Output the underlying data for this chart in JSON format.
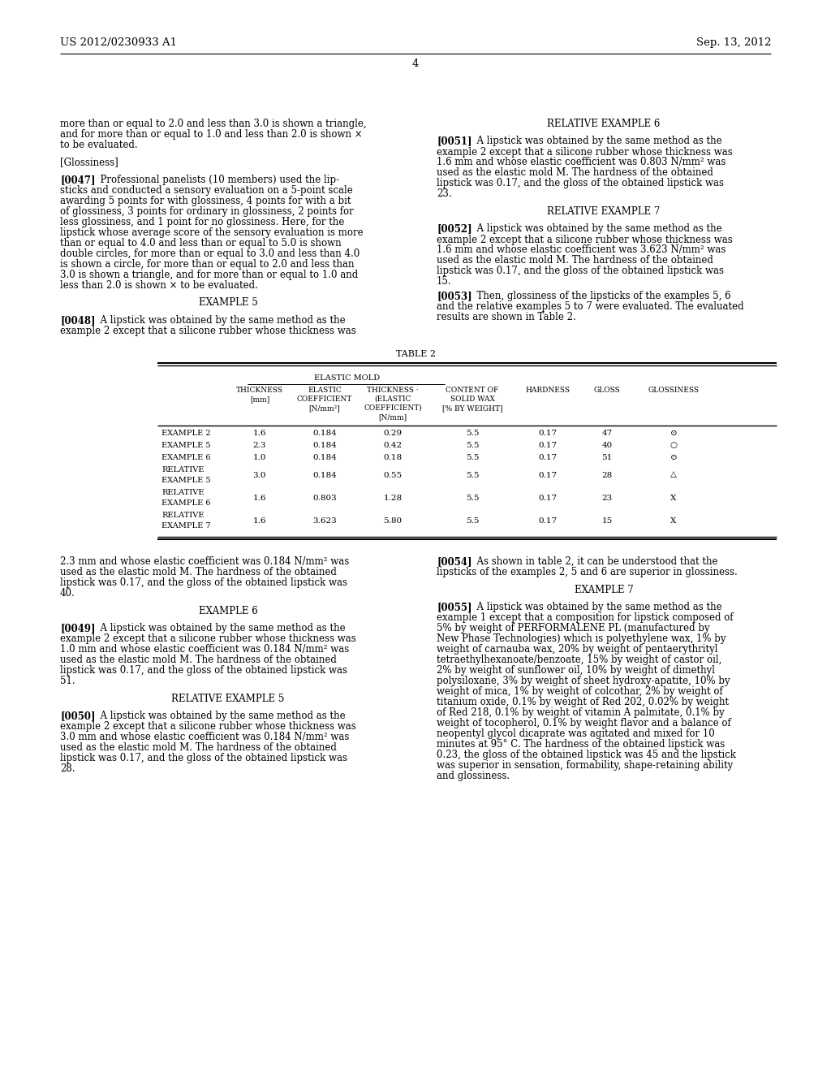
{
  "background_color": "#ffffff",
  "header_left": "US 2012/0230933 A1",
  "header_right": "Sep. 13, 2012",
  "page_number": "4"
}
